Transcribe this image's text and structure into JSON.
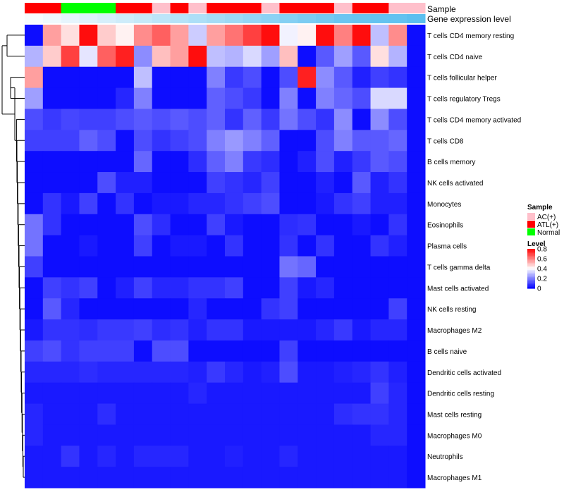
{
  "chart_data": {
    "type": "heatmap",
    "title": "",
    "annotation_labels": [
      "Sample",
      "Gene expression level"
    ],
    "sample_annotation": [
      "ATL(+)",
      "ATL(+)",
      "Normal",
      "Normal",
      "Normal",
      "ATL(+)",
      "ATL(+)",
      "AC(+)",
      "ATL(+)",
      "AC(+)",
      "ATL(+)",
      "ATL(+)",
      "ATL(+)",
      "AC(+)",
      "ATL(+)",
      "ATL(+)",
      "ATL(+)",
      "AC(+)",
      "ATL(+)",
      "ATL(+)",
      "AC(+)",
      "AC(+)"
    ],
    "expression_annotation": [
      0.05,
      0.1,
      0.15,
      0.2,
      0.25,
      0.3,
      0.35,
      0.4,
      0.45,
      0.5,
      0.55,
      0.6,
      0.65,
      0.7,
      0.75,
      0.8,
      0.85,
      0.9,
      0.92,
      0.94,
      0.96,
      1.0
    ],
    "rows": [
      "T cells CD4 memory resting",
      "T cells CD4 naive",
      "T cells follicular helper",
      "T cells regulatory  Tregs",
      "T cells CD4 memory activated",
      "T cells CD8",
      "B cells memory",
      "NK cells activated",
      "Monocytes",
      "Eosinophils",
      "Plasma cells",
      "T cells gamma delta",
      "Mast cells activated",
      "NK cells resting",
      "Macrophages M2",
      "B cells naive",
      "Dendritic cells activated",
      "Dendritic cells resting",
      "Mast cells resting",
      "Macrophages M0",
      "Neutrophils",
      "Macrophages M1"
    ],
    "values": [
      [
        0.02,
        0.55,
        0.45,
        0.78,
        0.48,
        0.42,
        0.58,
        0.65,
        0.55,
        0.32,
        0.55,
        0.62,
        0.7,
        0.78,
        0.38,
        0.42,
        0.78,
        0.6,
        0.78,
        0.3,
        0.58,
        0.02
      ],
      [
        0.28,
        0.48,
        0.7,
        0.36,
        0.65,
        0.75,
        0.22,
        0.5,
        0.55,
        0.78,
        0.3,
        0.28,
        0.34,
        0.25,
        0.5,
        0.02,
        0.14,
        0.25,
        0.14,
        0.45,
        0.28,
        0.02
      ],
      [
        0.55,
        0.02,
        0.02,
        0.02,
        0.02,
        0.02,
        0.3,
        0.02,
        0.02,
        0.02,
        0.2,
        0.09,
        0.12,
        0.02,
        0.12,
        0.75,
        0.22,
        0.14,
        0.05,
        0.1,
        0.08,
        0.02
      ],
      [
        0.25,
        0.02,
        0.02,
        0.02,
        0.02,
        0.06,
        0.2,
        0.02,
        0.02,
        0.02,
        0.15,
        0.12,
        0.09,
        0.02,
        0.2,
        0.02,
        0.2,
        0.16,
        0.12,
        0.34,
        0.34,
        0.02
      ],
      [
        0.12,
        0.09,
        0.11,
        0.1,
        0.1,
        0.12,
        0.14,
        0.12,
        0.14,
        0.12,
        0.15,
        0.08,
        0.15,
        0.09,
        0.18,
        0.12,
        0.08,
        0.22,
        0.02,
        0.22,
        0.12,
        0.02
      ],
      [
        0.1,
        0.1,
        0.1,
        0.15,
        0.12,
        0.02,
        0.12,
        0.08,
        0.1,
        0.12,
        0.2,
        0.24,
        0.2,
        0.15,
        0.02,
        0.02,
        0.12,
        0.2,
        0.14,
        0.14,
        0.16,
        0.02
      ],
      [
        0.02,
        0.02,
        0.02,
        0.02,
        0.02,
        0.02,
        0.16,
        0.02,
        0.02,
        0.07,
        0.15,
        0.2,
        0.09,
        0.07,
        0.02,
        0.05,
        0.12,
        0.05,
        0.09,
        0.14,
        0.12,
        0.02
      ],
      [
        0.02,
        0.02,
        0.02,
        0.02,
        0.12,
        0.05,
        0.05,
        0.02,
        0.02,
        0.02,
        0.1,
        0.08,
        0.06,
        0.1,
        0.02,
        0.02,
        0.05,
        0.02,
        0.14,
        0.05,
        0.08,
        0.02
      ],
      [
        0.02,
        0.08,
        0.04,
        0.1,
        0.02,
        0.08,
        0.02,
        0.04,
        0.04,
        0.06,
        0.06,
        0.08,
        0.1,
        0.12,
        0.02,
        0.02,
        0.04,
        0.08,
        0.1,
        0.05,
        0.05,
        0.02
      ],
      [
        0.18,
        0.08,
        0.02,
        0.02,
        0.02,
        0.02,
        0.12,
        0.07,
        0.02,
        0.02,
        0.1,
        0.04,
        0.02,
        0.02,
        0.07,
        0.08,
        0.02,
        0.02,
        0.04,
        0.02,
        0.08,
        0.02
      ],
      [
        0.18,
        0.02,
        0.02,
        0.04,
        0.02,
        0.02,
        0.1,
        0.02,
        0.04,
        0.04,
        0.02,
        0.08,
        0.02,
        0.02,
        0.08,
        0.02,
        0.08,
        0.02,
        0.02,
        0.08,
        0.05,
        0.02
      ],
      [
        0.1,
        0.02,
        0.02,
        0.02,
        0.02,
        0.02,
        0.02,
        0.02,
        0.02,
        0.02,
        0.02,
        0.02,
        0.02,
        0.02,
        0.18,
        0.16,
        0.02,
        0.02,
        0.02,
        0.02,
        0.02,
        0.02
      ],
      [
        0.02,
        0.1,
        0.08,
        0.1,
        0.02,
        0.05,
        0.1,
        0.06,
        0.06,
        0.08,
        0.08,
        0.1,
        0.02,
        0.02,
        0.1,
        0.04,
        0.06,
        0.02,
        0.02,
        0.02,
        0.02,
        0.02
      ],
      [
        0.02,
        0.14,
        0.06,
        0.02,
        0.02,
        0.02,
        0.02,
        0.02,
        0.02,
        0.06,
        0.02,
        0.02,
        0.02,
        0.08,
        0.1,
        0.02,
        0.02,
        0.02,
        0.02,
        0.02,
        0.1,
        0.02
      ],
      [
        0.04,
        0.08,
        0.08,
        0.07,
        0.09,
        0.09,
        0.1,
        0.07,
        0.08,
        0.05,
        0.08,
        0.08,
        0.04,
        0.04,
        0.04,
        0.04,
        0.06,
        0.09,
        0.04,
        0.06,
        0.06,
        0.02
      ],
      [
        0.1,
        0.12,
        0.08,
        0.1,
        0.1,
        0.1,
        0.02,
        0.12,
        0.12,
        0.02,
        0.02,
        0.02,
        0.02,
        0.02,
        0.1,
        0.02,
        0.02,
        0.02,
        0.02,
        0.02,
        0.02,
        0.02
      ],
      [
        0.06,
        0.06,
        0.06,
        0.07,
        0.06,
        0.06,
        0.06,
        0.06,
        0.06,
        0.05,
        0.09,
        0.06,
        0.04,
        0.05,
        0.12,
        0.04,
        0.04,
        0.05,
        0.06,
        0.08,
        0.05,
        0.02
      ],
      [
        0.04,
        0.04,
        0.04,
        0.04,
        0.04,
        0.04,
        0.04,
        0.04,
        0.04,
        0.06,
        0.04,
        0.04,
        0.04,
        0.04,
        0.04,
        0.04,
        0.04,
        0.04,
        0.04,
        0.1,
        0.06,
        0.02
      ],
      [
        0.06,
        0.04,
        0.04,
        0.04,
        0.07,
        0.04,
        0.04,
        0.04,
        0.04,
        0.04,
        0.04,
        0.04,
        0.04,
        0.04,
        0.04,
        0.04,
        0.04,
        0.07,
        0.08,
        0.08,
        0.06,
        0.02
      ],
      [
        0.06,
        0.04,
        0.04,
        0.04,
        0.04,
        0.04,
        0.04,
        0.04,
        0.04,
        0.04,
        0.04,
        0.04,
        0.04,
        0.04,
        0.04,
        0.04,
        0.04,
        0.04,
        0.04,
        0.06,
        0.06,
        0.02
      ],
      [
        0.04,
        0.04,
        0.08,
        0.04,
        0.06,
        0.04,
        0.06,
        0.06,
        0.06,
        0.04,
        0.04,
        0.05,
        0.04,
        0.04,
        0.06,
        0.04,
        0.04,
        0.04,
        0.04,
        0.04,
        0.04,
        0.02
      ],
      [
        0.04,
        0.04,
        0.04,
        0.04,
        0.04,
        0.04,
        0.04,
        0.04,
        0.04,
        0.04,
        0.04,
        0.04,
        0.04,
        0.04,
        0.04,
        0.04,
        0.04,
        0.04,
        0.04,
        0.04,
        0.04,
        0.02
      ]
    ],
    "legend": {
      "sample_title": "Sample",
      "sample_entries": [
        {
          "label": "AC(+)",
          "color": "#ffc0cb"
        },
        {
          "label": "ATL(+)",
          "color": "#ff0000"
        },
        {
          "label": "Normal",
          "color": "#00ff00"
        }
      ],
      "level_title": "Level",
      "level_ticks": [
        {
          "value": 0.8,
          "label": "0.8"
        },
        {
          "value": 0.6,
          "label": "0.6"
        },
        {
          "value": 0.4,
          "label": "0.4"
        },
        {
          "value": 0.2,
          "label": "0.2"
        },
        {
          "value": 0,
          "label": "0"
        }
      ],
      "range": [
        0,
        0.8
      ]
    },
    "colors": {
      "low": "#0000ff",
      "mid": "#ffffff",
      "high": "#ff0000",
      "expr_low": "#ffffff",
      "expr_high": "#5bbfef"
    }
  }
}
